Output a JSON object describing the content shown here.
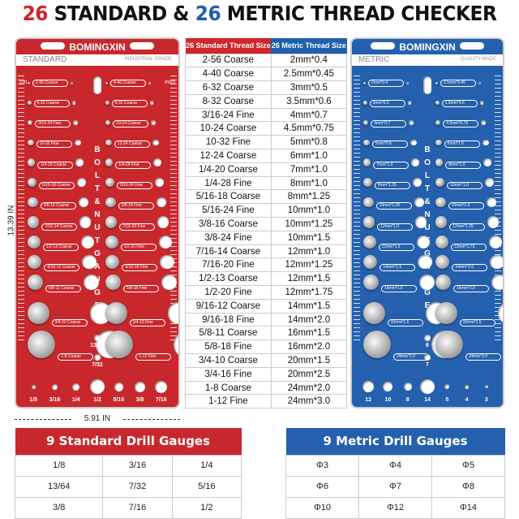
{
  "title": {
    "count1": "26",
    "part1": " STANDARD & ",
    "count2": "26",
    "part2": " METRIC THREAD CHECKER"
  },
  "colors": {
    "red": "#c8282c",
    "blue": "#2460ad"
  },
  "standard_panel": {
    "brand": "BOMINGXIN",
    "label": "STANDARD",
    "sub": "INDUSTRIAL GRADE",
    "unit_left": "cm",
    "unit_right": "inch",
    "vertical": [
      "B",
      "O",
      "L",
      "T",
      "&",
      "N",
      "U",
      "T",
      "G",
      "A",
      "U",
      "G",
      "E"
    ],
    "middle_holes": [
      "13/64",
      "7/32"
    ],
    "bottom_holes": [
      "1/8",
      "3/16",
      "1/4",
      "1/2",
      "5/16",
      "3/8",
      "7/16"
    ]
  },
  "metric_panel": {
    "brand": "BOMINGXIN",
    "label": "METRIC",
    "sub": "QUALITY MADE",
    "unit_left": "",
    "unit_right": "",
    "vertical": [
      "B",
      "O",
      "L",
      "T",
      "&",
      "N",
      "U",
      "T",
      "G",
      "A",
      "U",
      "G",
      "E"
    ],
    "middle_holes": [
      "6",
      "7"
    ],
    "bottom_holes": [
      "12",
      "10",
      "8",
      "14",
      "5",
      "4",
      "3"
    ]
  },
  "dimensions": {
    "width": "5.91 IN",
    "height": "13.39 IN"
  },
  "thread_table": {
    "header_standard": "26 Standard Thread Size",
    "header_metric": "26 Metric Thread Size",
    "rows": [
      [
        "2-56 Coarse",
        "2mm*0.4"
      ],
      [
        "4-40 Coarse",
        "2.5mm*0.45"
      ],
      [
        "6-32 Coarse",
        "3mm*0.5"
      ],
      [
        "8-32 Coarse",
        "3.5mm*0.6"
      ],
      [
        "3/16-24 Fine",
        "4mm*0.7"
      ],
      [
        "10-24 Coarse",
        "4.5mm*0.75"
      ],
      [
        "10-32 Fine",
        "5mm*0.8"
      ],
      [
        "12-24 Coarse",
        "6mm*1.0"
      ],
      [
        "1/4-20 Coarse",
        "7mm*1.0"
      ],
      [
        "1/4-28 Fine",
        "8mm*1.0"
      ],
      [
        "5/16-18 Coarse",
        "8mm*1.25"
      ],
      [
        "5/16-24 Fine",
        "10mm*1.0"
      ],
      [
        "3/8-16 Coarse",
        "10mm*1.25"
      ],
      [
        "3/8-24 Fine",
        "10mm*1.5"
      ],
      [
        "7/16-14 Coarse",
        "12mm*1.0"
      ],
      [
        "7/16-20 Fine",
        "12mm*1.25"
      ],
      [
        "1/2-13 Coarse",
        "12mm*1.5"
      ],
      [
        "1/2-20 Fine",
        "12mm*1.75"
      ],
      [
        "9/16-12 Coarse",
        "14mm*1.5"
      ],
      [
        "9/16-18 Fine",
        "14mm*2.0"
      ],
      [
        "5/8-11 Coarse",
        "16mm*1.5"
      ],
      [
        "5/8-18 Fine",
        "16mm*2.0"
      ],
      [
        "3/4-10 Coarse",
        "20mm*1.5"
      ],
      [
        "3/4-16 Fine",
        "20mm*2.5"
      ],
      [
        "1-8 Coarse",
        "24mm*2.0"
      ],
      [
        "1-12 Fine",
        "24mm*3.0"
      ]
    ]
  },
  "standard_drill": {
    "title": "9 Standard Drill Gauges",
    "rows": [
      [
        "1/8",
        "3/16",
        "1/4"
      ],
      [
        "13/64",
        "7/32",
        "5/16"
      ],
      [
        "3/8",
        "7/16",
        "1/2"
      ]
    ]
  },
  "metric_drill": {
    "title": "9 Metric Drill Gauges",
    "rows": [
      [
        "Φ3",
        "Φ4",
        "Φ5"
      ],
      [
        "Φ6",
        "Φ7",
        "Φ8"
      ],
      [
        "Φ10",
        "Φ12",
        "Φ14"
      ]
    ]
  }
}
